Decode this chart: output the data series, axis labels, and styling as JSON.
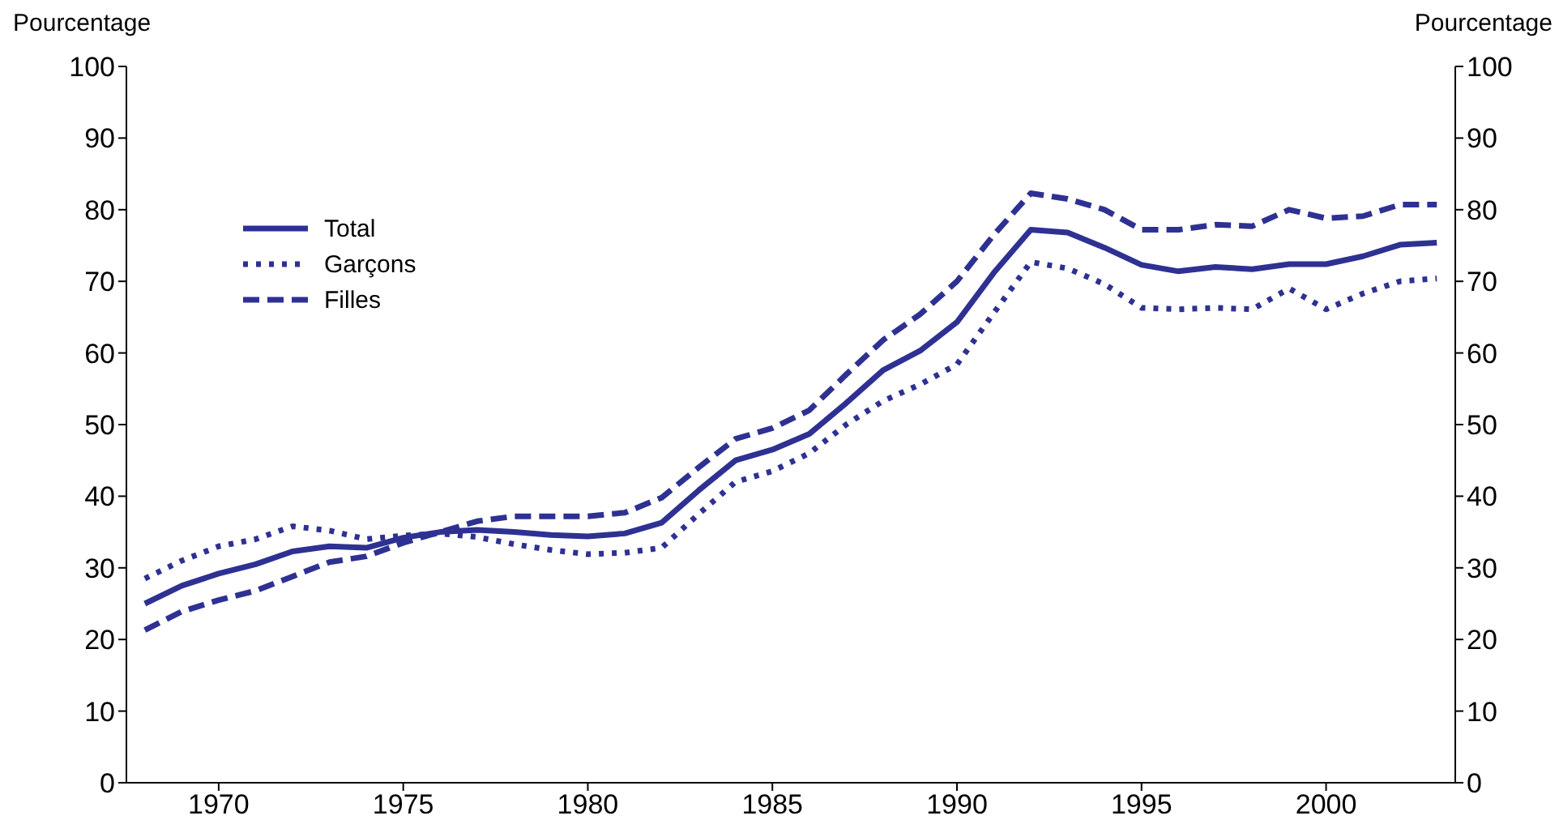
{
  "chart_data": {
    "type": "line",
    "ylabel": "Pourcentage",
    "y2label": "Pourcentage",
    "x": [
      1968,
      1969,
      1970,
      1971,
      1972,
      1973,
      1974,
      1975,
      1976,
      1977,
      1978,
      1979,
      1980,
      1981,
      1982,
      1983,
      1984,
      1985,
      1986,
      1987,
      1988,
      1989,
      1990,
      1991,
      1992,
      1993,
      1994,
      1995,
      1996,
      1997,
      1998,
      1999,
      2000,
      2001,
      2002,
      2003
    ],
    "series": [
      {
        "name": "Total",
        "color": "#2e3192",
        "line_style": "solid",
        "values": [
          25,
          27.5,
          29.2,
          30.5,
          32.3,
          33,
          32.8,
          34.2,
          35,
          35.3,
          35,
          34.6,
          34.4,
          34.8,
          36.3,
          40.8,
          45,
          46.5,
          48.7,
          53,
          57.6,
          60.3,
          64.3,
          71.2,
          77.2,
          76.8,
          74.7,
          72.3,
          71.4,
          72,
          71.7,
          72.4,
          72.4,
          73.5,
          75.1,
          75.4
        ]
      },
      {
        "name": "Garçons",
        "color": "#2e3192",
        "line_style": "dotted",
        "values": [
          28.5,
          31,
          33,
          34,
          35.8,
          35.2,
          34,
          34.5,
          34.8,
          34.3,
          33.3,
          32.5,
          31.9,
          32.1,
          32.8,
          37.5,
          42,
          43.5,
          46,
          50,
          53.3,
          55.6,
          58.4,
          65.6,
          72.7,
          71.8,
          69.6,
          66.3,
          66.1,
          66.3,
          66.1,
          69,
          66.1,
          68.3,
          70,
          70.4
        ]
      },
      {
        "name": "Filles",
        "color": "#2e3192",
        "line_style": "dashed",
        "values": [
          21.3,
          23.9,
          25.5,
          26.8,
          28.8,
          30.8,
          31.6,
          33.5,
          35,
          36.5,
          37.2,
          37.2,
          37.2,
          37.7,
          39.8,
          44,
          48,
          49.5,
          52,
          57,
          61.8,
          65.4,
          70,
          76.5,
          82.3,
          81.5,
          80,
          77.2,
          77.2,
          77.9,
          77.7,
          80,
          78.8,
          79.1,
          80.7,
          80.7
        ]
      }
    ],
    "xlim": [
      1967.5,
      2003.5
    ],
    "xticks": [
      1970,
      1975,
      1980,
      1985,
      1990,
      1995,
      2000
    ],
    "ylim": [
      0,
      100
    ],
    "yticks": [
      0,
      10,
      20,
      30,
      40,
      50,
      60,
      70,
      80,
      90,
      100
    ],
    "y2lim": [
      0,
      100
    ],
    "y2ticks": [
      0,
      10,
      20,
      30,
      40,
      50,
      60,
      70,
      80,
      90,
      100
    ],
    "grid": false,
    "legend": "top left",
    "marker": "none"
  }
}
